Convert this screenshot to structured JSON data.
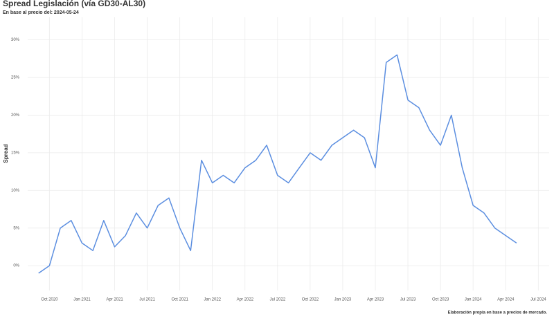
{
  "chart_data": {
    "type": "line",
    "title": "Spread Legislación (vía GD30-AL30)",
    "subtitle": "En base al precio del: 2024-05-24",
    "ylabel": "Spread",
    "caption": "Elaboración propia en base a precios de mercado.",
    "x": [
      "2020-09",
      "2020-10",
      "2020-11",
      "2020-12",
      "2021-01",
      "2021-02",
      "2021-03",
      "2021-04",
      "2021-05",
      "2021-06",
      "2021-07",
      "2021-08",
      "2021-09",
      "2021-10",
      "2021-11",
      "2021-12",
      "2022-01",
      "2022-02",
      "2022-03",
      "2022-04",
      "2022-05",
      "2022-06",
      "2022-07",
      "2022-08",
      "2022-09",
      "2022-10",
      "2022-11",
      "2022-12",
      "2023-01",
      "2023-02",
      "2023-03",
      "2023-04",
      "2023-05",
      "2023-06",
      "2023-07",
      "2023-08",
      "2023-09",
      "2023-10",
      "2023-11",
      "2023-12",
      "2024-01",
      "2024-02",
      "2024-03",
      "2024-04",
      "2024-05"
    ],
    "series": [
      {
        "name": "Spread",
        "color": "#5b8ee0",
        "values": [
          -1,
          0,
          5,
          6,
          3,
          2,
          6,
          2.5,
          4,
          7,
          5,
          8,
          9,
          5,
          2,
          14,
          11,
          12,
          11,
          13,
          14,
          16,
          12,
          11,
          13,
          15,
          14,
          16,
          17,
          18,
          17,
          13,
          27,
          28,
          22,
          21,
          18,
          16,
          20,
          13,
          8,
          7,
          5,
          4,
          3
        ]
      }
    ],
    "xlim": [
      "2020-08",
      "2024-08"
    ],
    "xticks": [
      {
        "value": "2020-10",
        "label": "Oct 2020"
      },
      {
        "value": "2021-01",
        "label": "Jan 2021"
      },
      {
        "value": "2021-04",
        "label": "Apr 2021"
      },
      {
        "value": "2021-07",
        "label": "Jul 2021"
      },
      {
        "value": "2021-10",
        "label": "Oct 2021"
      },
      {
        "value": "2022-01",
        "label": "Jan 2022"
      },
      {
        "value": "2022-04",
        "label": "Apr 2022"
      },
      {
        "value": "2022-07",
        "label": "Jul 2022"
      },
      {
        "value": "2022-10",
        "label": "Oct 2022"
      },
      {
        "value": "2023-01",
        "label": "Jan 2023"
      },
      {
        "value": "2023-04",
        "label": "Apr 2023"
      },
      {
        "value": "2023-07",
        "label": "Jul 2023"
      },
      {
        "value": "2023-10",
        "label": "Oct 2023"
      },
      {
        "value": "2024-01",
        "label": "Jan 2024"
      },
      {
        "value": "2024-04",
        "label": "Apr 2024"
      },
      {
        "value": "2024-07",
        "label": "Jul 2024"
      }
    ],
    "ylim": [
      -3.3,
      33
    ],
    "yticks": [
      {
        "value": 0,
        "label": "0%"
      },
      {
        "value": 5,
        "label": "5%"
      },
      {
        "value": 10,
        "label": "10%"
      },
      {
        "value": 15,
        "label": "15%"
      },
      {
        "value": 20,
        "label": "20%"
      },
      {
        "value": 25,
        "label": "25%"
      },
      {
        "value": 30,
        "label": "30%"
      }
    ],
    "grid": true
  }
}
